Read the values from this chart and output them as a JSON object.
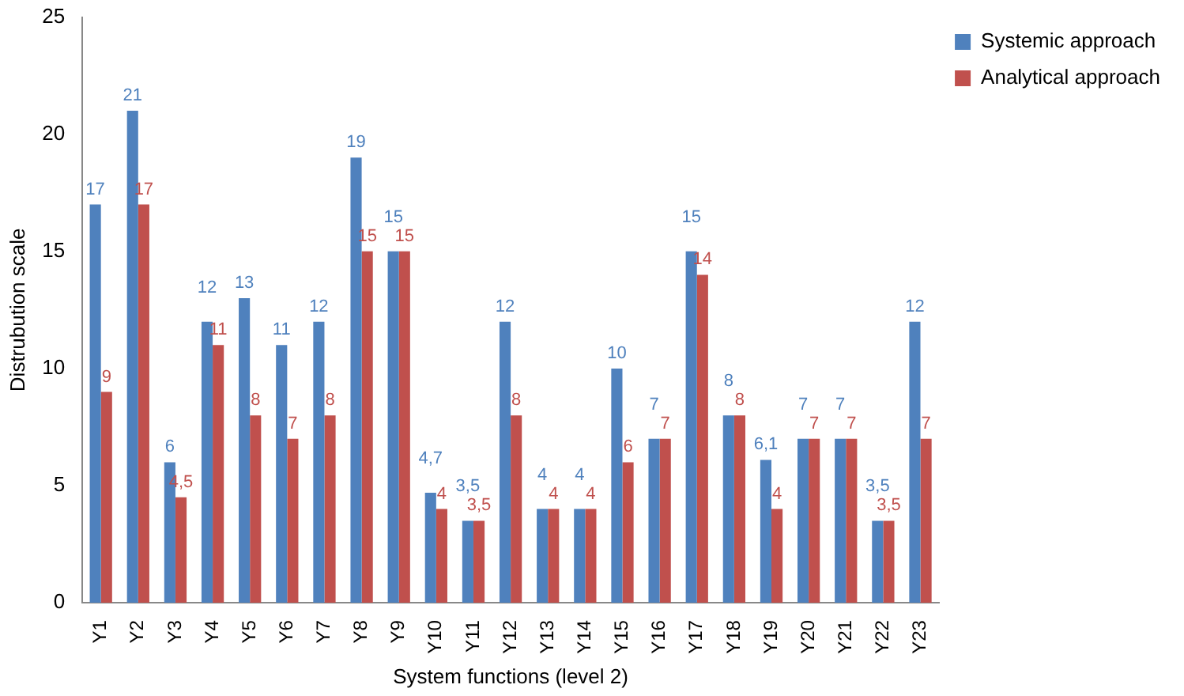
{
  "chart_data": {
    "type": "bar",
    "xlabel": "System functions (level 2)",
    "ylabel": "Distrubution scale",
    "categories": [
      "Y1",
      "Y2",
      "Y3",
      "Y4",
      "Y5",
      "Y6",
      "Y7",
      "Y8",
      "Y9",
      "Y10",
      "Y11",
      "Y12",
      "Y13",
      "Y14",
      "Y15",
      "Y16",
      "Y17",
      "Y18",
      "Y19",
      "Y20",
      "Y21",
      "Y22",
      "Y23"
    ],
    "series": [
      {
        "name": "Systemic approach",
        "color": "#4f81bd",
        "values": [
          17,
          21,
          6,
          12,
          13,
          11,
          12,
          19,
          15,
          4.7,
          3.5,
          12,
          4,
          4,
          10,
          7,
          15,
          8,
          6.1,
          7,
          7,
          3.5,
          12
        ],
        "value_labels": [
          "17",
          "21",
          "6",
          "12",
          "13",
          "11",
          "12",
          "19",
          "15",
          "4,7",
          "3,5",
          "12",
          "4",
          "4",
          "10",
          "7",
          "15",
          "8",
          "6,1",
          "7",
          "7",
          "3,5",
          "12"
        ]
      },
      {
        "name": "Analytical approach",
        "color": "#c0504d",
        "values": [
          9,
          17,
          4.5,
          11,
          8,
          7,
          8,
          15,
          15,
          4,
          3.5,
          8,
          4,
          4,
          6,
          7,
          14,
          8,
          4,
          7,
          7,
          3.5,
          7
        ],
        "value_labels": [
          "9",
          "17",
          "4,5",
          "11",
          "8",
          "7",
          "8",
          "15",
          "15",
          "4",
          "3,5",
          "8",
          "4",
          "4",
          "6",
          "7",
          "14",
          "8",
          "4",
          "7",
          "7",
          "3,5",
          "7"
        ]
      }
    ],
    "ylim": [
      0,
      25
    ],
    "yticks": [
      0,
      5,
      10,
      15,
      20,
      25
    ],
    "grid": false,
    "legend": "top right"
  }
}
